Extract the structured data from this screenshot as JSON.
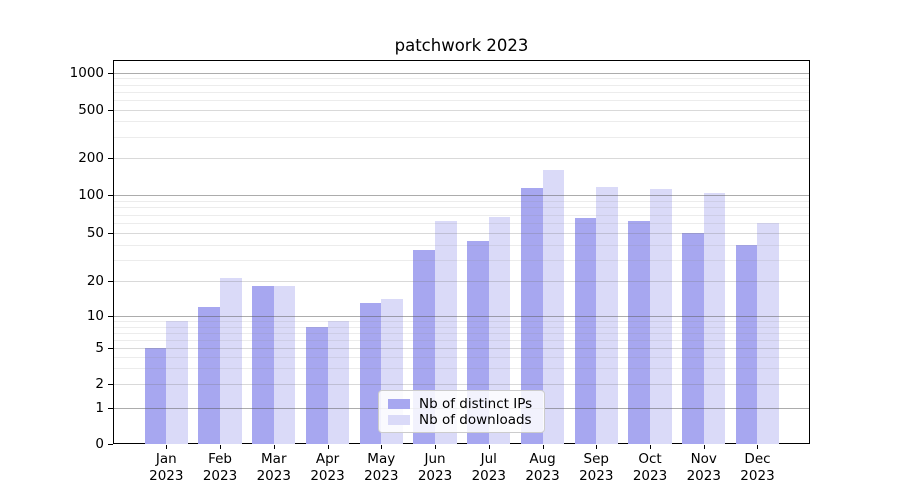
{
  "title": "patchwork 2023",
  "chart_data": {
    "type": "bar",
    "title": "patchwork 2023",
    "x_categories": [
      "Jan 2023",
      "Feb 2023",
      "Mar 2023",
      "Apr 2023",
      "May 2023",
      "Jun 2023",
      "Jul 2023",
      "Aug 2023",
      "Sep 2023",
      "Oct 2023",
      "Nov 2023",
      "Dec 2023"
    ],
    "series": [
      {
        "name": "Nb of distinct IPs",
        "color": "#a7a7f0",
        "values": [
          5,
          12,
          18,
          8,
          13,
          36,
          43,
          115,
          66,
          63,
          50,
          40
        ]
      },
      {
        "name": "Nb of downloads",
        "color": "#dadaf8",
        "values": [
          9,
          21,
          18,
          9,
          14,
          62,
          67,
          160,
          117,
          112,
          104,
          60
        ]
      }
    ],
    "yscale": "symlog",
    "yticks": [
      0,
      1,
      2,
      5,
      10,
      20,
      50,
      100,
      200,
      500,
      1000
    ],
    "ytick_labels": [
      "0",
      "1",
      "2",
      "5",
      "10",
      "20",
      "50",
      "100",
      "200",
      "500",
      "1000"
    ],
    "ylim": [
      0,
      1000
    ],
    "grid": true,
    "legend_position": "lower center",
    "frame": true
  }
}
